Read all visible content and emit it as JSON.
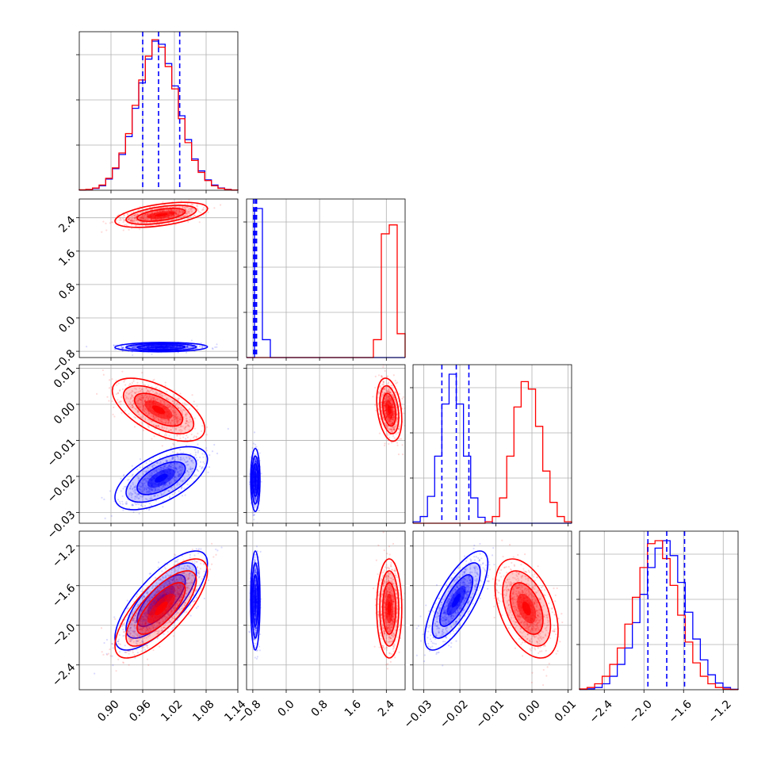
{
  "chart_data": {
    "type": "corner",
    "series_colors": [
      "#0000ff",
      "#ff0000"
    ],
    "quantile_line_color": "#0000ff",
    "grid": true,
    "parameters": [
      {
        "range": [
          0.84,
          1.14
        ],
        "ticks": [
          "0.90",
          "0.96",
          "1.02",
          "1.08",
          "1.14"
        ]
      },
      {
        "range": [
          -0.95,
          2.85
        ],
        "ticks": [
          "−0.8",
          "0.0",
          "0.8",
          "1.6",
          "2.4"
        ]
      },
      {
        "range": [
          -0.033,
          0.011
        ],
        "ticks": [
          "−0.03",
          "−0.02",
          "−0.01",
          "0.00",
          "0.01"
        ]
      },
      {
        "range": [
          -2.65,
          -1.05
        ],
        "ticks": [
          "−2.4",
          "−2.0",
          "−1.6",
          "−1.2"
        ]
      }
    ],
    "diagonal": [
      {
        "quantiles": [
          0.96,
          0.99,
          1.03
        ],
        "blue": [
          0.2,
          0.4,
          1.2,
          3.0,
          7.5,
          14.5,
          24.0,
          36.0,
          55.0,
          72.0,
          88.0,
          100.0,
          98.0,
          85.0,
          70.0,
          50.0,
          34.0,
          21.0,
          13.0,
          7.0,
          3.5,
          1.5,
          0.6,
          0.2
        ],
        "red": [
          0.3,
          0.6,
          1.5,
          3.5,
          8.0,
          15.0,
          25.0,
          38.0,
          57.0,
          74.0,
          90.0,
          101.0,
          96.0,
          83.0,
          68.0,
          48.0,
          32.0,
          20.0,
          12.0,
          6.5,
          3.0,
          1.3,
          0.5,
          0.2
        ]
      },
      {
        "quantiles": [
          -0.78,
          -0.74,
          -0.71
        ],
        "blue": [
          0.0,
          100.0,
          12.0,
          0.0,
          0.0,
          0.0,
          0.0,
          0.0,
          0.0,
          0.0,
          0.0,
          0.0,
          0.0,
          0.0,
          0.0,
          0.0,
          0.0,
          0.0,
          0.0,
          0.0
        ],
        "red": [
          0.0,
          0.0,
          0.0,
          0.0,
          0.0,
          0.0,
          0.0,
          0.0,
          0.0,
          0.0,
          0.0,
          0.0,
          0.0,
          0.0,
          0.0,
          0.0,
          12.0,
          83.0,
          89.0,
          16.0
        ]
      },
      {
        "quantiles": [
          -0.025,
          -0.021,
          -0.0175
        ],
        "blue": [
          1.0,
          4.5,
          18.0,
          45.0,
          80.0,
          100.0,
          80.0,
          45.0,
          17.0,
          4.0,
          1.0,
          0.0,
          0.0,
          0.0,
          0.0,
          0.0,
          0.0,
          0.0,
          0.0,
          0.0,
          0.0,
          0.0
        ],
        "red": [
          0.0,
          0.0,
          0.0,
          0.0,
          0.0,
          0.0,
          0.0,
          0.0,
          0.0,
          0.0,
          1.0,
          4.5,
          17.0,
          45.0,
          78.0,
          95.0,
          90.0,
          65.0,
          35.0,
          14.0,
          4.5,
          1.0
        ]
      },
      {
        "quantiles": [
          -1.96,
          -1.77,
          -1.59
        ],
        "blue": [
          0.2,
          0.6,
          1.5,
          4.0,
          9.0,
          17.0,
          28.0,
          45.0,
          64.0,
          82.0,
          95.0,
          100.0,
          90.0,
          72.0,
          52.0,
          34.0,
          20.0,
          10.0,
          4.5,
          1.5,
          0.3
        ],
        "red": [
          0.5,
          1.5,
          4.0,
          9.0,
          17.0,
          28.0,
          44.0,
          62.0,
          82.0,
          98.0,
          100.0,
          88.0,
          70.0,
          50.0,
          32.0,
          18.0,
          9.0,
          4.0,
          1.5,
          0.5,
          0.1
        ]
      }
    ],
    "pairs": [
      {
        "x": 0,
        "y": 1,
        "blobs": [
          {
            "color": "blue",
            "cx": 0.995,
            "cy": -0.7,
            "sx": 0.035,
            "sy": 0.045,
            "rho": 0.05
          },
          {
            "color": "red",
            "cx": 0.995,
            "cy": 2.47,
            "sx": 0.035,
            "sy": 0.12,
            "rho": 0.5
          }
        ]
      },
      {
        "x": 0,
        "y": 2,
        "blobs": [
          {
            "color": "blue",
            "cx": 0.995,
            "cy": -0.0205,
            "sx": 0.035,
            "sy": 0.0035,
            "rho": 0.6
          },
          {
            "color": "red",
            "cx": 0.99,
            "cy": -0.0015,
            "sx": 0.035,
            "sy": 0.0035,
            "rho": -0.6
          }
        ]
      },
      {
        "x": 0,
        "y": 3,
        "blobs": [
          {
            "color": "blue",
            "cx": 0.995,
            "cy": -1.75,
            "sx": 0.035,
            "sy": 0.2,
            "rho": 0.75
          },
          {
            "color": "red",
            "cx": 0.995,
            "cy": -1.83,
            "sx": 0.035,
            "sy": 0.2,
            "rho": 0.75
          }
        ]
      },
      {
        "x": 1,
        "y": 2,
        "blobs": [
          {
            "color": "blue",
            "cx": -0.74,
            "cy": -0.021,
            "sx": 0.045,
            "sy": 0.0035,
            "rho": 0.0
          },
          {
            "color": "red",
            "cx": 2.47,
            "cy": -0.0015,
            "sx": 0.12,
            "sy": 0.0035,
            "rho": -0.3
          }
        ]
      },
      {
        "x": 1,
        "y": 3,
        "blobs": [
          {
            "color": "blue",
            "cx": -0.74,
            "cy": -1.75,
            "sx": 0.045,
            "sy": 0.2,
            "rho": 0.0
          },
          {
            "color": "red",
            "cx": 2.47,
            "cy": -1.83,
            "sx": 0.12,
            "sy": 0.2,
            "rho": 0.0
          }
        ]
      },
      {
        "x": 2,
        "y": 3,
        "blobs": [
          {
            "color": "blue",
            "cx": -0.021,
            "cy": -1.75,
            "sx": 0.0035,
            "sy": 0.2,
            "rho": 0.75
          },
          {
            "color": "red",
            "cx": -0.0015,
            "cy": -1.83,
            "sx": 0.0035,
            "sy": 0.2,
            "rho": -0.45
          }
        ]
      }
    ]
  }
}
